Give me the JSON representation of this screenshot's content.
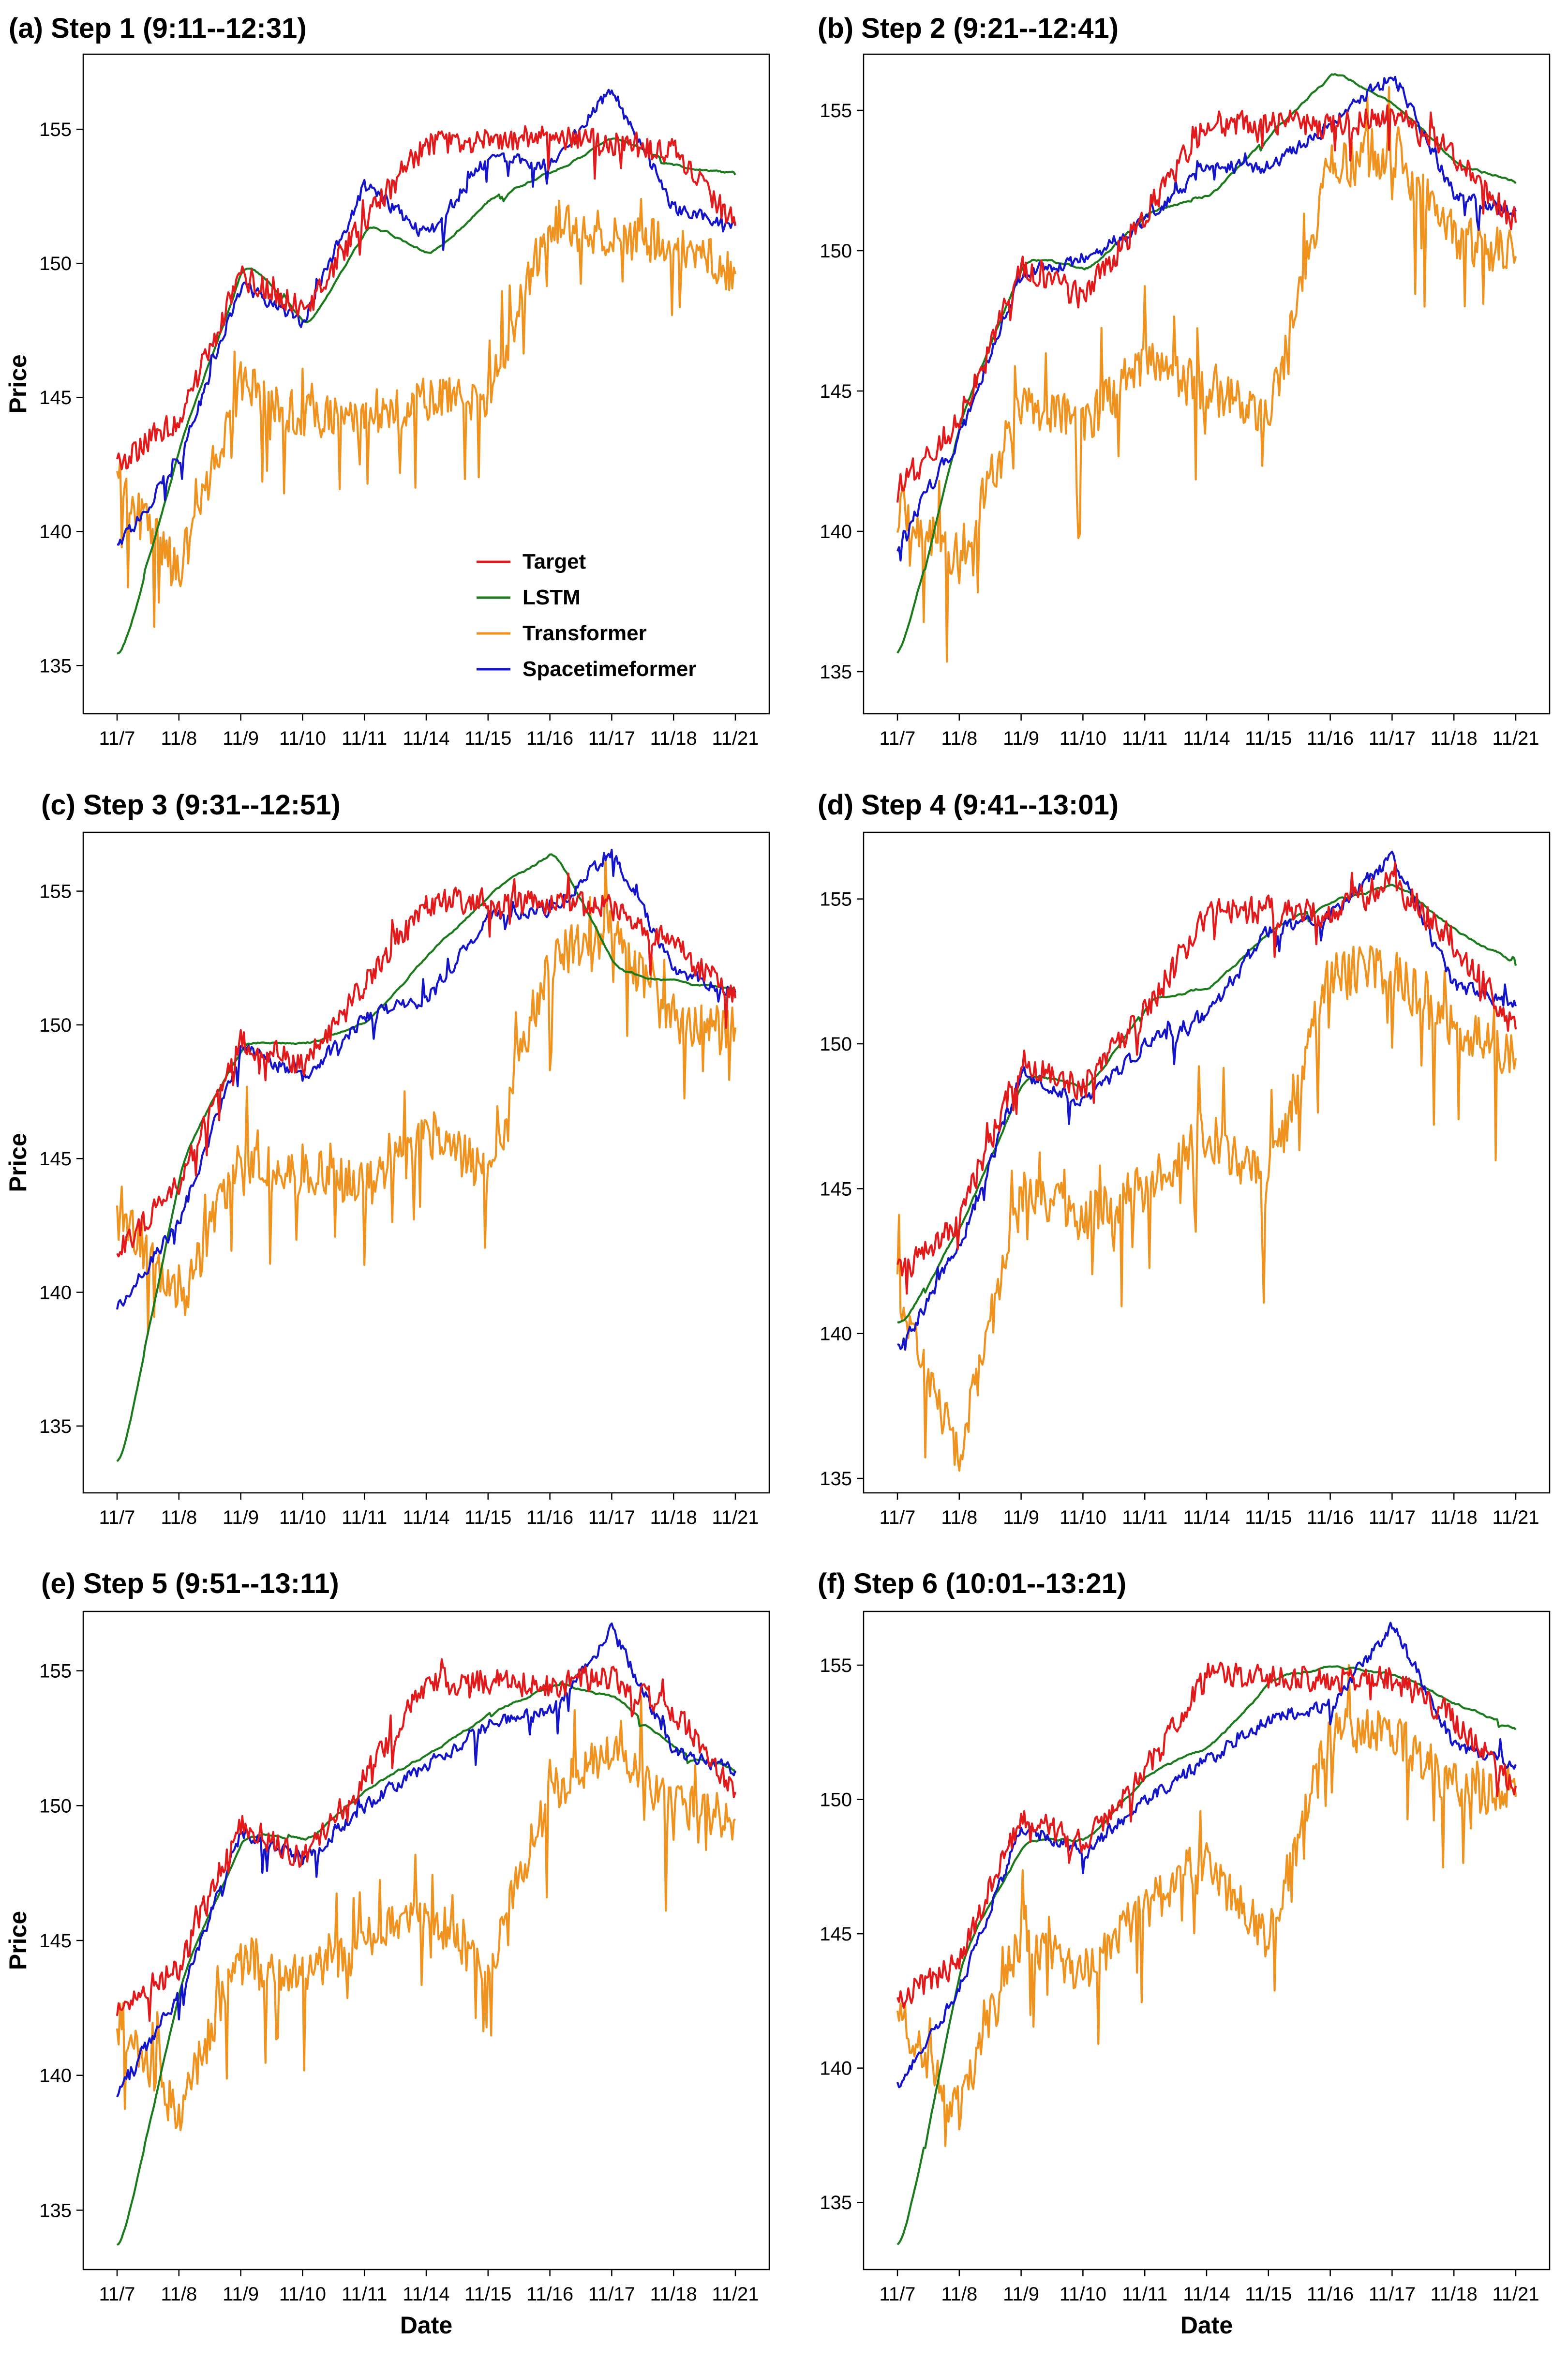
{
  "figure": {
    "x_axis_label": "Date",
    "y_axis_label": "Price",
    "legend_placement": "lower-right of panel (a)",
    "colors": {
      "Target": "#e31a1c",
      "LSTM": "#1b7a1b",
      "Transformer": "#f0921e",
      "Spacetimeformer": "#1414c8"
    }
  },
  "chart_data": [
    {
      "type": "line",
      "title": "(a)  Step 1 (9:11--12:31)",
      "xlabel": "",
      "ylabel": "Price",
      "categories": [
        "11/7",
        "11/8",
        "11/9",
        "11/10",
        "11/11",
        "11/14",
        "11/15",
        "11/16",
        "11/17",
        "11/18",
        "11/21"
      ],
      "yticks": [
        135,
        140,
        145,
        150,
        155
      ],
      "ylim": [
        133.2,
        157.8
      ],
      "legend": [
        "Target",
        "LSTM",
        "Transformer",
        "Spacetimeformer"
      ],
      "series": [
        {
          "name": "Target",
          "values": [
            142.5,
            144.2,
            149.5,
            148.3,
            151.6,
            154.5,
            154.6,
            154.7,
            154.5,
            154.2,
            151.4
          ]
        },
        {
          "name": "LSTM",
          "values": [
            135.4,
            143.8,
            150.2,
            147.6,
            151.5,
            150.3,
            152.5,
            153.5,
            154.7,
            153.6,
            153.3
          ]
        },
        {
          "name": "Transformer",
          "values": [
            142.0,
            138.5,
            145.5,
            144.3,
            144.0,
            145.0,
            145.0,
            151.5,
            151.0,
            150.8,
            149.6
          ]
        },
        {
          "name": "Spacetimeformer",
          "values": [
            139.4,
            142.7,
            149.2,
            147.8,
            153.0,
            151.0,
            154.0,
            153.7,
            156.5,
            152.0,
            151.4
          ]
        }
      ]
    },
    {
      "type": "line",
      "title": "(b) Step 2 (9:21--12:41)",
      "xlabel": "",
      "ylabel": "",
      "categories": [
        "11/7",
        "11/8",
        "11/9",
        "11/10",
        "11/11",
        "11/14",
        "11/15",
        "11/16",
        "11/17",
        "11/18",
        "11/21"
      ],
      "yticks": [
        135,
        140,
        145,
        150,
        155
      ],
      "ylim": [
        133.5,
        157.0
      ],
      "series": [
        {
          "name": "Target",
          "values": [
            141.5,
            144.0,
            149.4,
            148.3,
            151.3,
            154.6,
            154.6,
            154.5,
            154.8,
            153.5,
            151.0
          ]
        },
        {
          "name": "LSTM",
          "values": [
            135.8,
            144.5,
            149.8,
            149.3,
            151.4,
            152.0,
            154.3,
            156.4,
            155.1,
            153.0,
            152.4
          ]
        },
        {
          "name": "Transformer",
          "values": [
            141.0,
            139.0,
            144.5,
            143.8,
            146.0,
            145.0,
            144.0,
            153.0,
            153.5,
            150.5,
            149.8
          ]
        },
        {
          "name": "Spacetimeformer",
          "values": [
            139.6,
            143.4,
            149.2,
            149.7,
            151.0,
            153.0,
            153.0,
            154.5,
            156.3,
            152.0,
            151.4
          ]
        }
      ]
    },
    {
      "type": "line",
      "title": "(c) Step 3 (9:31--12:51)",
      "xlabel": "",
      "ylabel": "Price",
      "categories": [
        "11/7",
        "11/8",
        "11/9",
        "11/10",
        "11/11",
        "11/14",
        "11/15",
        "11/16",
        "11/17",
        "11/18",
        "11/21"
      ],
      "yticks": [
        135,
        140,
        145,
        150,
        155
      ],
      "ylim": [
        132.5,
        157.2
      ],
      "series": [
        {
          "name": "Target",
          "values": [
            141.5,
            144.0,
            149.4,
            148.5,
            151.5,
            154.6,
            154.6,
            154.5,
            154.4,
            153.0,
            151.0
          ]
        },
        {
          "name": "LSTM",
          "values": [
            133.7,
            145.3,
            149.4,
            149.3,
            150.2,
            152.8,
            155.0,
            156.5,
            152.0,
            151.6,
            151.3
          ]
        },
        {
          "name": "Transformer",
          "values": [
            143.4,
            139.5,
            145.0,
            144.5,
            144.0,
            146.0,
            144.5,
            152.5,
            153.5,
            150.0,
            149.9
          ]
        },
        {
          "name": "Spacetimeformer",
          "values": [
            139.4,
            142.7,
            149.2,
            148.0,
            150.3,
            151.0,
            154.0,
            154.3,
            156.5,
            152.0,
            151.2
          ]
        }
      ]
    },
    {
      "type": "line",
      "title": "(d) Step 4 (9:41--13:01)",
      "xlabel": "",
      "ylabel": "",
      "categories": [
        "11/7",
        "11/8",
        "11/9",
        "11/10",
        "11/11",
        "11/14",
        "11/15",
        "11/16",
        "11/17",
        "11/18",
        "11/21"
      ],
      "yticks": [
        135,
        140,
        145,
        150,
        155
      ],
      "ylim": [
        134.5,
        157.3
      ],
      "series": [
        {
          "name": "Target",
          "values": [
            142.0,
            144.0,
            149.4,
            148.5,
            151.0,
            154.5,
            154.6,
            154.5,
            155.6,
            153.5,
            150.5
          ]
        },
        {
          "name": "LSTM",
          "values": [
            140.3,
            144.0,
            149.0,
            148.5,
            151.5,
            152.0,
            154.0,
            155.0,
            155.5,
            153.8,
            152.7
          ]
        },
        {
          "name": "Transformer",
          "values": [
            141.5,
            135.6,
            145.0,
            144.0,
            145.0,
            147.0,
            145.0,
            152.5,
            152.5,
            150.5,
            149.5
          ]
        },
        {
          "name": "Spacetimeformer",
          "values": [
            139.4,
            143.0,
            149.0,
            148.0,
            150.0,
            151.0,
            154.0,
            154.5,
            156.5,
            152.0,
            151.3
          ]
        }
      ]
    },
    {
      "type": "line",
      "title": "(e) Step 5 (9:51--13:11)",
      "xlabel": "Date",
      "ylabel": "Price",
      "categories": [
        "11/7",
        "11/8",
        "11/9",
        "11/10",
        "11/11",
        "11/14",
        "11/15",
        "11/16",
        "11/17",
        "11/18",
        "11/21"
      ],
      "yticks": [
        135,
        140,
        145,
        150,
        155
      ],
      "ylim": [
        132.8,
        157.2
      ],
      "series": [
        {
          "name": "Target",
          "values": [
            142.5,
            144.0,
            149.4,
            148.0,
            151.0,
            154.6,
            154.6,
            154.5,
            154.8,
            153.5,
            150.5
          ]
        },
        {
          "name": "LSTM",
          "values": [
            133.8,
            144.0,
            149.0,
            148.7,
            150.7,
            152.0,
            153.5,
            154.5,
            154.0,
            152.0,
            151.2
          ]
        },
        {
          "name": "Transformer",
          "values": [
            142.3,
            138.5,
            144.5,
            143.5,
            145.0,
            146.0,
            144.0,
            150.5,
            152.0,
            150.0,
            149.5
          ]
        },
        {
          "name": "Spacetimeformer",
          "values": [
            139.4,
            143.0,
            149.0,
            148.0,
            150.0,
            151.5,
            153.0,
            153.5,
            156.5,
            152.0,
            151.3
          ]
        }
      ]
    },
    {
      "type": "line",
      "title": "(f) Step 6 (10:01--13:21)",
      "xlabel": "Date",
      "ylabel": "",
      "categories": [
        "11/7",
        "11/8",
        "11/9",
        "11/10",
        "11/11",
        "11/14",
        "11/15",
        "11/16",
        "11/17",
        "11/18",
        "11/21"
      ],
      "yticks": [
        135,
        140,
        145,
        150,
        155
      ],
      "ylim": [
        132.5,
        157.0
      ],
      "series": [
        {
          "name": "Target",
          "values": [
            142.5,
            144.0,
            149.4,
            148.3,
            151.0,
            154.6,
            154.6,
            154.5,
            154.5,
            153.0,
            150.5
          ]
        },
        {
          "name": "LSTM",
          "values": [
            133.4,
            144.5,
            148.5,
            148.5,
            151.0,
            152.0,
            154.5,
            155.0,
            154.6,
            153.5,
            152.6
          ]
        },
        {
          "name": "Transformer",
          "values": [
            142.0,
            138.5,
            145.0,
            143.5,
            146.0,
            147.5,
            145.0,
            152.5,
            152.5,
            150.5,
            150.1
          ]
        },
        {
          "name": "Spacetimeformer",
          "values": [
            139.4,
            143.0,
            149.0,
            148.0,
            150.0,
            151.5,
            153.0,
            153.5,
            156.5,
            152.0,
            151.3
          ]
        }
      ]
    }
  ]
}
